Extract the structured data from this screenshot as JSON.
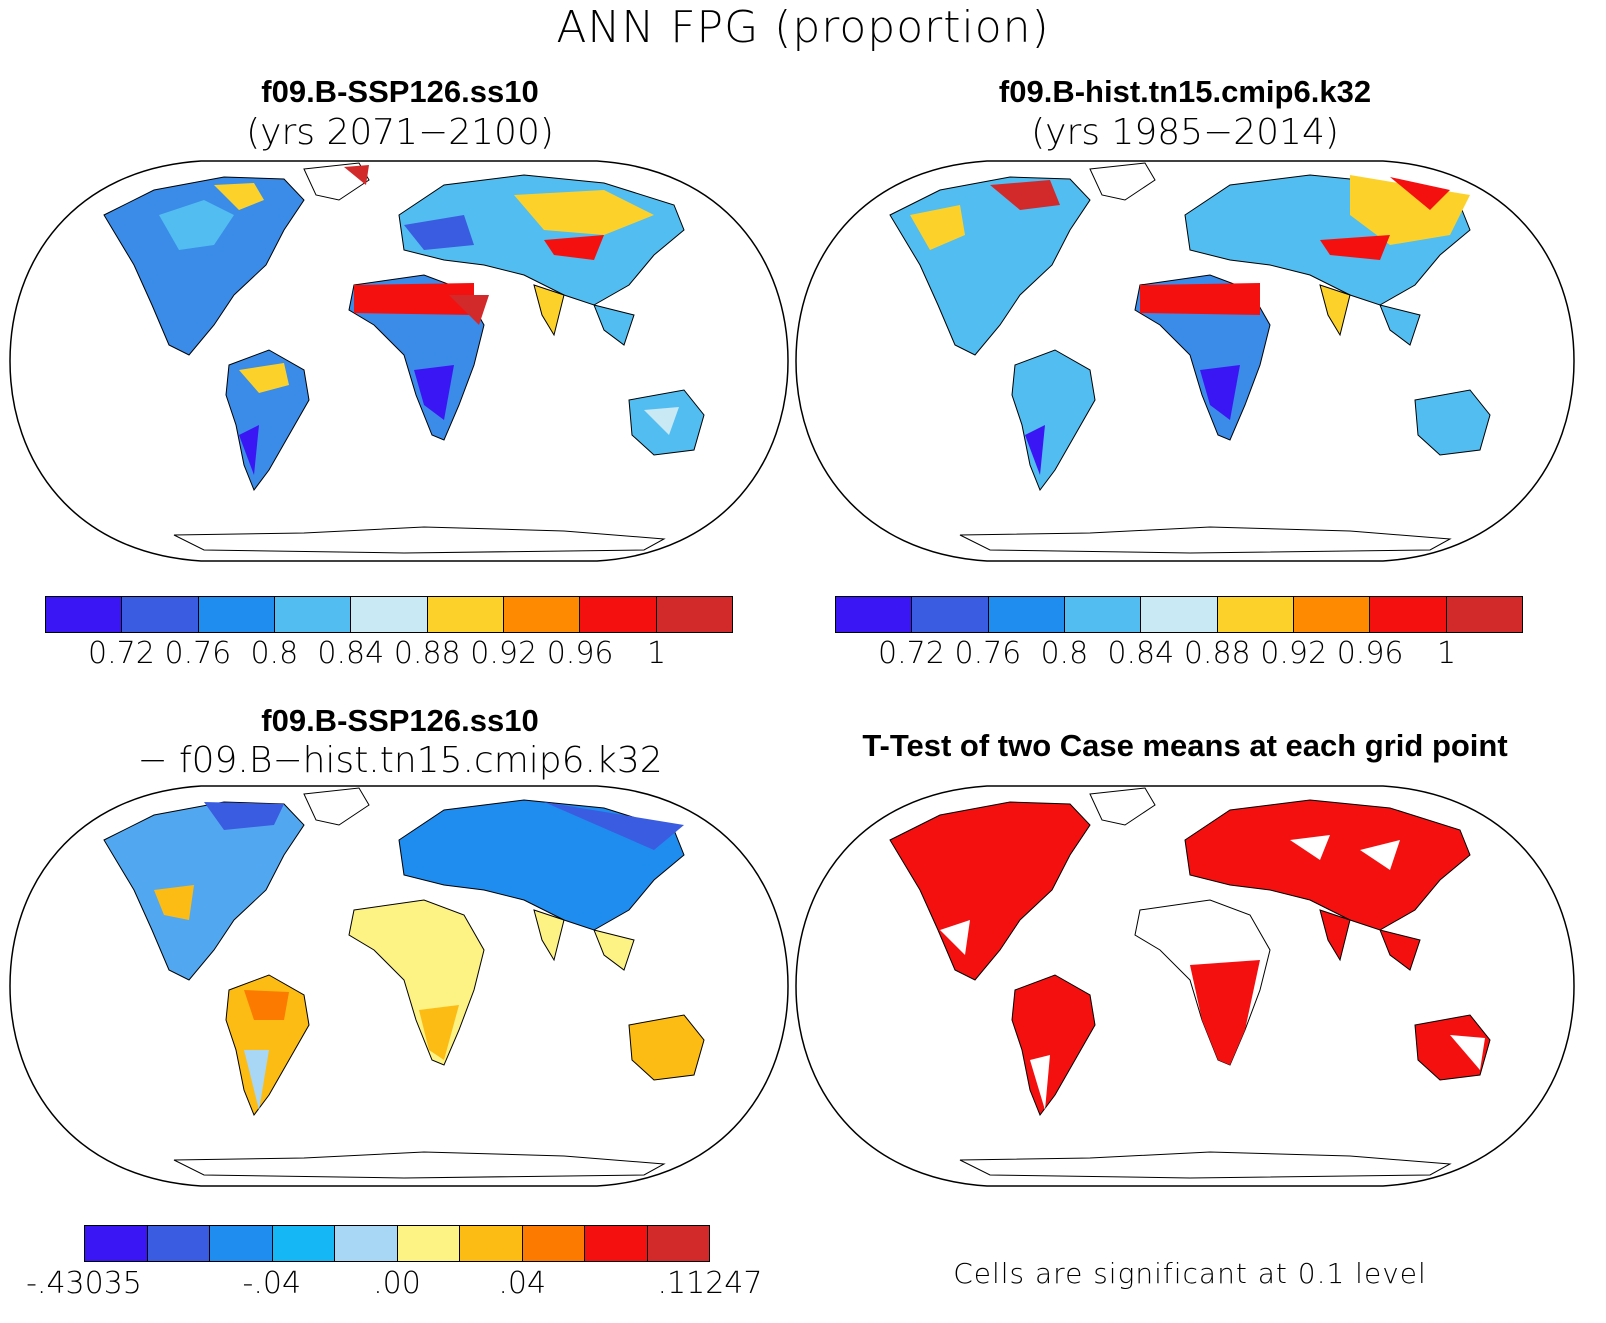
{
  "figure": {
    "title": "ANN FPG (proportion)"
  },
  "panels": {
    "top_left": {
      "title": "f09.B-SSP126.ss10",
      "subtitle": "(yrs 2071−2100)"
    },
    "top_right": {
      "title": "f09.B-hist.tn15.cmip6.k32",
      "subtitle": "(yrs 1985−2014)"
    },
    "bottom_left": {
      "title": "f09.B-SSP126.ss10",
      "subtitle": "− f09.B−hist.tn15.cmip6.k32"
    },
    "bottom_right": {
      "title": "T-Test of two Case means at each grid point",
      "note": "Cells are significant at 0.1 level"
    }
  },
  "colorbars": {
    "absolute": {
      "colors": [
        "#3b16f5",
        "#3a5ce0",
        "#1f8cf0",
        "#52bdf0",
        "#c9e9f5",
        "#fcd22a",
        "#fd8a00",
        "#f51010",
        "#d22a2a"
      ],
      "labels": [
        "0.72",
        "0.76",
        "0.8",
        "0.84",
        "0.88",
        "0.92",
        "0.96",
        "1"
      ]
    },
    "difference": {
      "colors": [
        "#3b16f5",
        "#3a5ce0",
        "#1f8cf0",
        "#16b7f5",
        "#a8d6f5",
        "#fdf284",
        "#fcbc14",
        "#fd7a00",
        "#f51010",
        "#d22a2a"
      ],
      "labels": [
        "-.43035",
        "-.04",
        ".00",
        ".04",
        ".11247"
      ]
    }
  },
  "colors": {
    "significant": "#f51010",
    "coast": "#000000"
  }
}
